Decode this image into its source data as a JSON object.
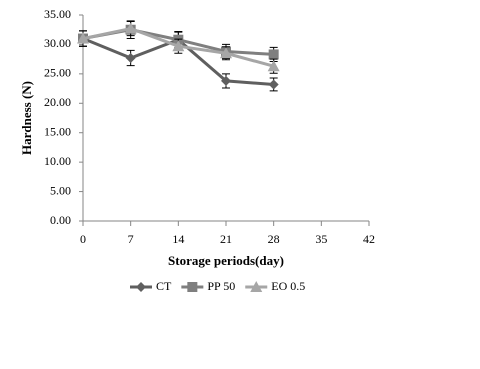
{
  "chart_data": {
    "type": "line",
    "x_label": "Storage periods(day)",
    "y_label": "Hardness (N)",
    "x": [
      0,
      7,
      14,
      21,
      28
    ],
    "series": [
      {
        "name": "CT",
        "color": "#5f5f5f",
        "marker": "diamond",
        "values": [
          31.0,
          27.7,
          30.8,
          23.8,
          23.2
        ],
        "errors": [
          1.3,
          1.3,
          1.3,
          1.2,
          1.1
        ]
      },
      {
        "name": "PP 50",
        "color": "#7f7f7f",
        "marker": "square",
        "values": [
          31.0,
          32.5,
          30.8,
          28.8,
          28.3
        ],
        "errors": [
          1.3,
          1.5,
          1.4,
          1.2,
          1.2
        ]
      },
      {
        "name": "EO 0.5",
        "color": "#a6a6a6",
        "marker": "triangle",
        "values": [
          31.0,
          32.7,
          29.7,
          28.5,
          26.3
        ],
        "errors": [
          1.3,
          1.2,
          1.2,
          1.1,
          1.2
        ]
      }
    ],
    "xlim": [
      0,
      42
    ],
    "xticks": [
      0,
      7,
      14,
      21,
      28,
      35,
      42
    ],
    "ylim": [
      0,
      35
    ],
    "yticks": [
      {
        "value": 0,
        "label": "0.00"
      },
      {
        "value": 5,
        "label": "5.00"
      },
      {
        "value": 10,
        "label": "10.00"
      },
      {
        "value": 15,
        "label": "15.00"
      },
      {
        "value": 20,
        "label": "20.00"
      },
      {
        "value": 25,
        "label": "25.00"
      },
      {
        "value": 30,
        "label": "30.00"
      },
      {
        "value": 35,
        "label": "35.00"
      }
    ],
    "grid": false,
    "legend": "bottom"
  }
}
